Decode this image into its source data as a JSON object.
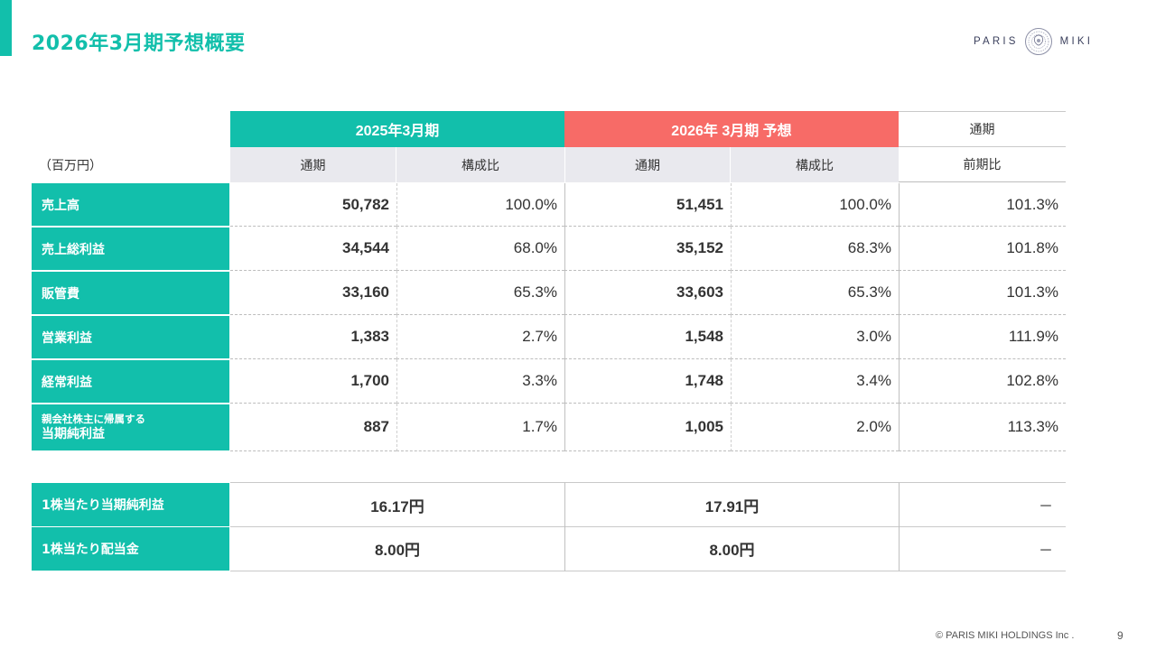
{
  "header": {
    "title": "2026年3月期予想概要",
    "logo_left": "PARIS",
    "logo_right": "MIKI"
  },
  "table": {
    "unit_label": "（百万円）",
    "group_headers": {
      "fy2025": "2025年3月期",
      "fy2026": "2026年 3月期 予想",
      "fullyear": "通期"
    },
    "sub_headers": {
      "fy2025_full": "通期",
      "fy2025_ratio": "構成比",
      "fy2026_full": "通期",
      "fy2026_ratio": "構成比",
      "yoy": "前期比"
    },
    "rows": [
      {
        "label": "売上高",
        "v2025": "50,782",
        "r2025": "100.0%",
        "v2026": "51,451",
        "r2026": "100.0%",
        "yoy": "101.3%"
      },
      {
        "label": "売上総利益",
        "v2025": "34,544",
        "r2025": "68.0%",
        "v2026": "35,152",
        "r2026": "68.3%",
        "yoy": "101.8%"
      },
      {
        "label": "販管費",
        "v2025": "33,160",
        "r2025": "65.3%",
        "v2026": "33,603",
        "r2026": "65.3%",
        "yoy": "101.3%"
      },
      {
        "label": "営業利益",
        "v2025": "1,383",
        "r2025": "2.7%",
        "v2026": "1,548",
        "r2026": "3.0%",
        "yoy": "111.9%"
      },
      {
        "label": "経常利益",
        "v2025": "1,700",
        "r2025": "3.3%",
        "v2026": "1,748",
        "r2026": "3.4%",
        "yoy": "102.8%"
      },
      {
        "label_line1": "親会社株主に帰属する",
        "label_line2": "当期純利益",
        "v2025": "887",
        "r2025": "1.7%",
        "v2026": "1,005",
        "r2026": "2.0%",
        "yoy": "113.3%"
      }
    ],
    "per_share": [
      {
        "label": "1株当たり当期純利益",
        "v2025": "16.17円",
        "v2026": "17.91円",
        "yoy": "－"
      },
      {
        "label": "1株当たり配当金",
        "v2025": "8.00円",
        "v2026": "8.00円",
        "yoy": "－"
      }
    ]
  },
  "footer": {
    "copyright": "© PARIS MIKI HOLDINGS Inc .",
    "page_number": "9"
  },
  "colors": {
    "teal": "#12bfab",
    "coral": "#f76b67",
    "subheader_gray": "#e9e9ee"
  }
}
